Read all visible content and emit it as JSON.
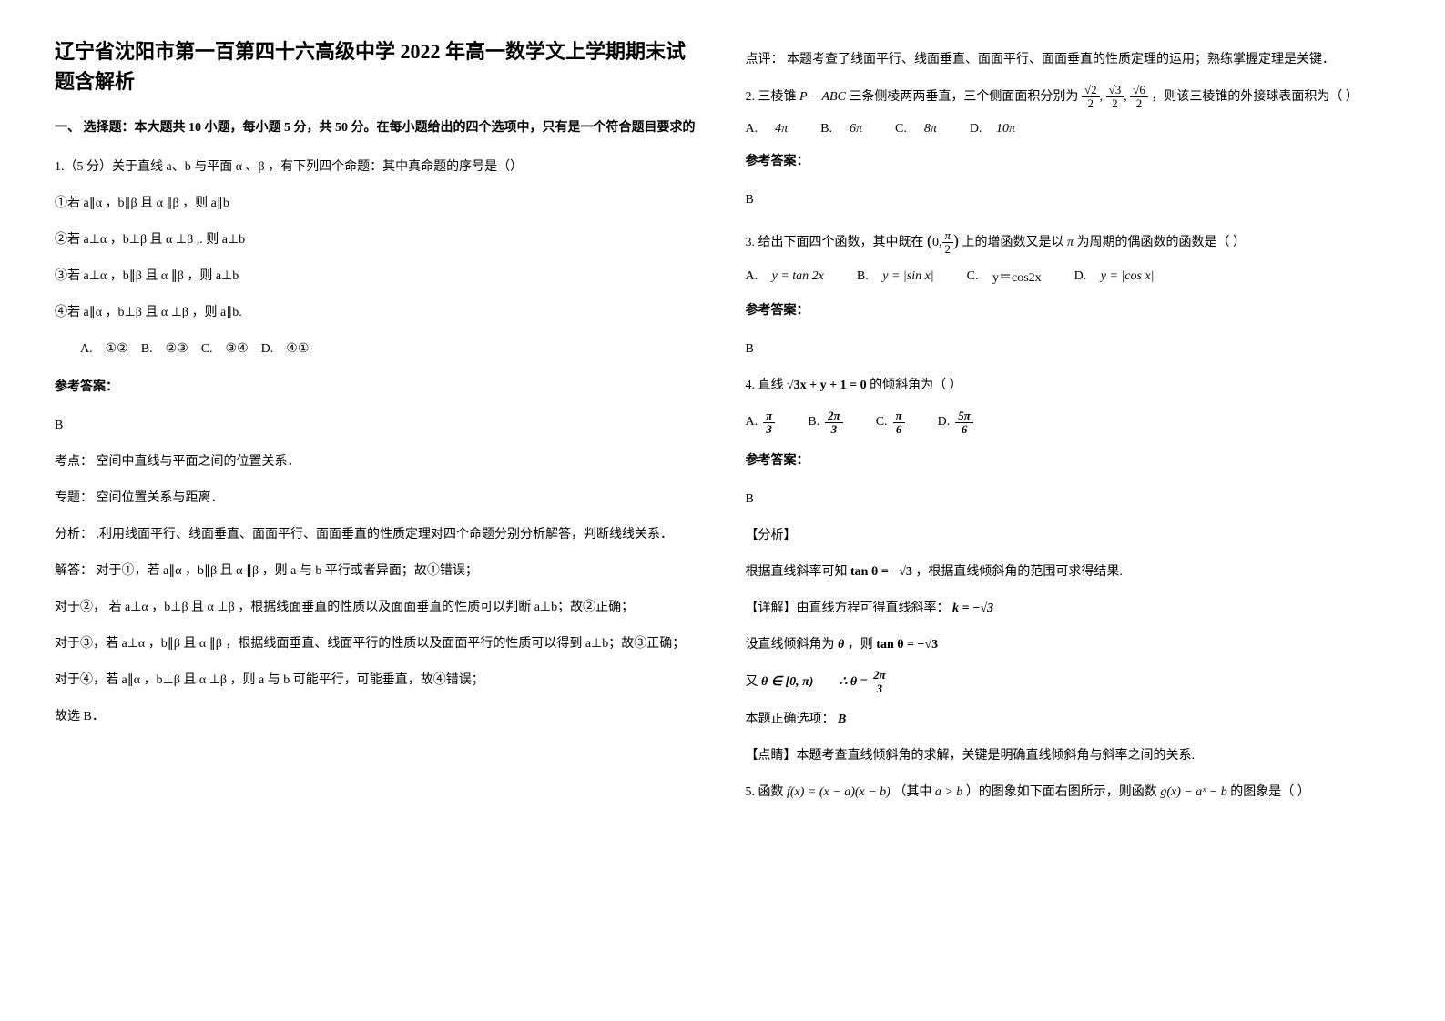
{
  "title": "辽宁省沈阳市第一百第四十六高级中学 2022 年高一数学文上学期期末试题含解析",
  "section1": "一、 选择题：本大题共 10 小题，每小题 5 分，共 50 分。在每小题给出的四个选项中，只有是一个符合题目要求的",
  "q1": {
    "stem": "1.（5 分）关于直线 a、b 与平面 α 、β ，有下列四个命题：其中真命题的序号是（）",
    "s1": "①若 a∥α ，b∥β 且 α ∥β ，则 a∥b",
    "s2": "②若 a⊥α ，b⊥β 且 α ⊥β ,. 则 a⊥b",
    "s3": "③若 a⊥α ，b∥β 且 α ∥β ，则 a⊥b",
    "s4": "④若 a∥α ，b⊥β 且 α ⊥β ，则 a∥b.",
    "optA": "①②",
    "optB": "②③",
    "optC": "③④",
    "optD": "④①",
    "answer_label": "参考答案：",
    "answer": "B",
    "kaodian": "考点：  空间中直线与平面之间的位置关系．",
    "zhuanti": "专题：  空间位置关系与距离．",
    "fenxi": "分析： .利用线面平行、线面垂直、面面平行、面面垂直的性质定理对四个命题分别分析解答，判断线线关系．",
    "jieda_intro": "解答：  对于①，若 a∥α ，b∥β 且 α ∥β ，则 a 与 b 平行或者异面；故①错误；",
    "jieda2": "对于②， 若 a⊥α ，b⊥β 且 α ⊥β ，根据线面垂直的性质以及面面垂直的性质可以判断 a⊥b；故②正确；",
    "jieda3": "对于③，若 a⊥α ，b∥β 且 α ∥β ，根据线面垂直、线面平行的性质以及面面平行的性质可以得到 a⊥b；故③正确；",
    "jieda4": "对于④，若 a∥α ，b⊥β 且 α ⊥β ，则 a 与 b 可能平行，可能垂直，故④错误；",
    "guoxuan": "故选 B．",
    "dianping": "点评：  本题考查了线面平行、线面垂直、面面平行、面面垂直的性质定理的运用；熟练掌握定理是关键．"
  },
  "q2": {
    "stem_a": "2. 三棱锥 ",
    "stem_i": "P − ABC",
    "stem_b": " 三条侧棱两两垂直，三个侧面面积分别为 ",
    "stem_c": " ，则该三棱锥的外接球表面积为（      ）",
    "frac1_num": "√2",
    "frac1_den": "2",
    "frac2_num": "√3",
    "frac2_den": "2",
    "frac3_num": "√6",
    "frac3_den": "2",
    "optA": "4π",
    "optB": "6π",
    "optC": "8π",
    "optD": "10π",
    "labA": "A.",
    "labB": "B.",
    "labC": "C.",
    "labD": "D.",
    "answer_label": "参考答案：",
    "answer": "B"
  },
  "q3": {
    "stem_a": "3. 给出下面四个函数，其中既在 ",
    "stem_b": " 上的增函数又是以 ",
    "stem_pi": "π",
    "stem_c": " 为周期的偶函数的函数是（         ）",
    "interval_a": "0,",
    "interval_num": "π",
    "interval_den": "2",
    "optA": "y = tan 2x",
    "optB": "y = |sin x|",
    "optC": "y＝cos2x",
    "optD": "y = |cos x|",
    "labA": "A.",
    "labB": "B.",
    "labC": "C.",
    "labD": "D.",
    "answer_label": "参考答案：",
    "answer": "B"
  },
  "q4": {
    "stem_a": "4. 直线 ",
    "stem_eq": "√3x + y + 1 = 0",
    "stem_b": " 的倾斜角为（        ）",
    "optA_num": "π",
    "optA_den": "3",
    "optB_num": "2π",
    "optB_den": "3",
    "optC_num": "π",
    "optC_den": "6",
    "optD_num": "5π",
    "optD_den": "6",
    "labA": "A.",
    "labB": "B.",
    "labC": "C.",
    "labD": "D.",
    "answer_label": "参考答案：",
    "answer": "B",
    "fenxi_head": "【分析】",
    "fenxi": "根据直线斜率可知 ",
    "fenxi_eq": "tan θ = −√3",
    "fenxi_b": " ，根据直线倾斜角的范围可求得结果.",
    "xiangjie_head": "【详解】由直线方程可得直线斜率：",
    "xiangjie_k": " k = −√3",
    "xiangjie2_a": "设直线倾斜角为 ",
    "xiangjie2_th": "θ",
    "xiangjie2_b": " ，则 ",
    "xiangjie2_eq": "tan θ = −√3",
    "you_a": "又 ",
    "you_rng": "θ ∈ [0, π)",
    "you_b": "∴ θ = ",
    "you_num": "2π",
    "you_den": "3",
    "benti": "本题正确选项：",
    "benti_ans": "B",
    "dianjing": "【点睛】本题考查直线倾斜角的求解，关键是明确直线倾斜角与斜率之间的关系."
  },
  "q5": {
    "stem_a": "5. 函数 ",
    "stem_f": "f(x) = (x − a)(x − b)",
    "stem_b": " （其中 ",
    "stem_ab": "a > b",
    "stem_c": " ）的图象如下面右图所示，则函数 ",
    "stem_g": "g(x) − aˣ − b",
    "stem_d": " 的图象是（         ）"
  }
}
